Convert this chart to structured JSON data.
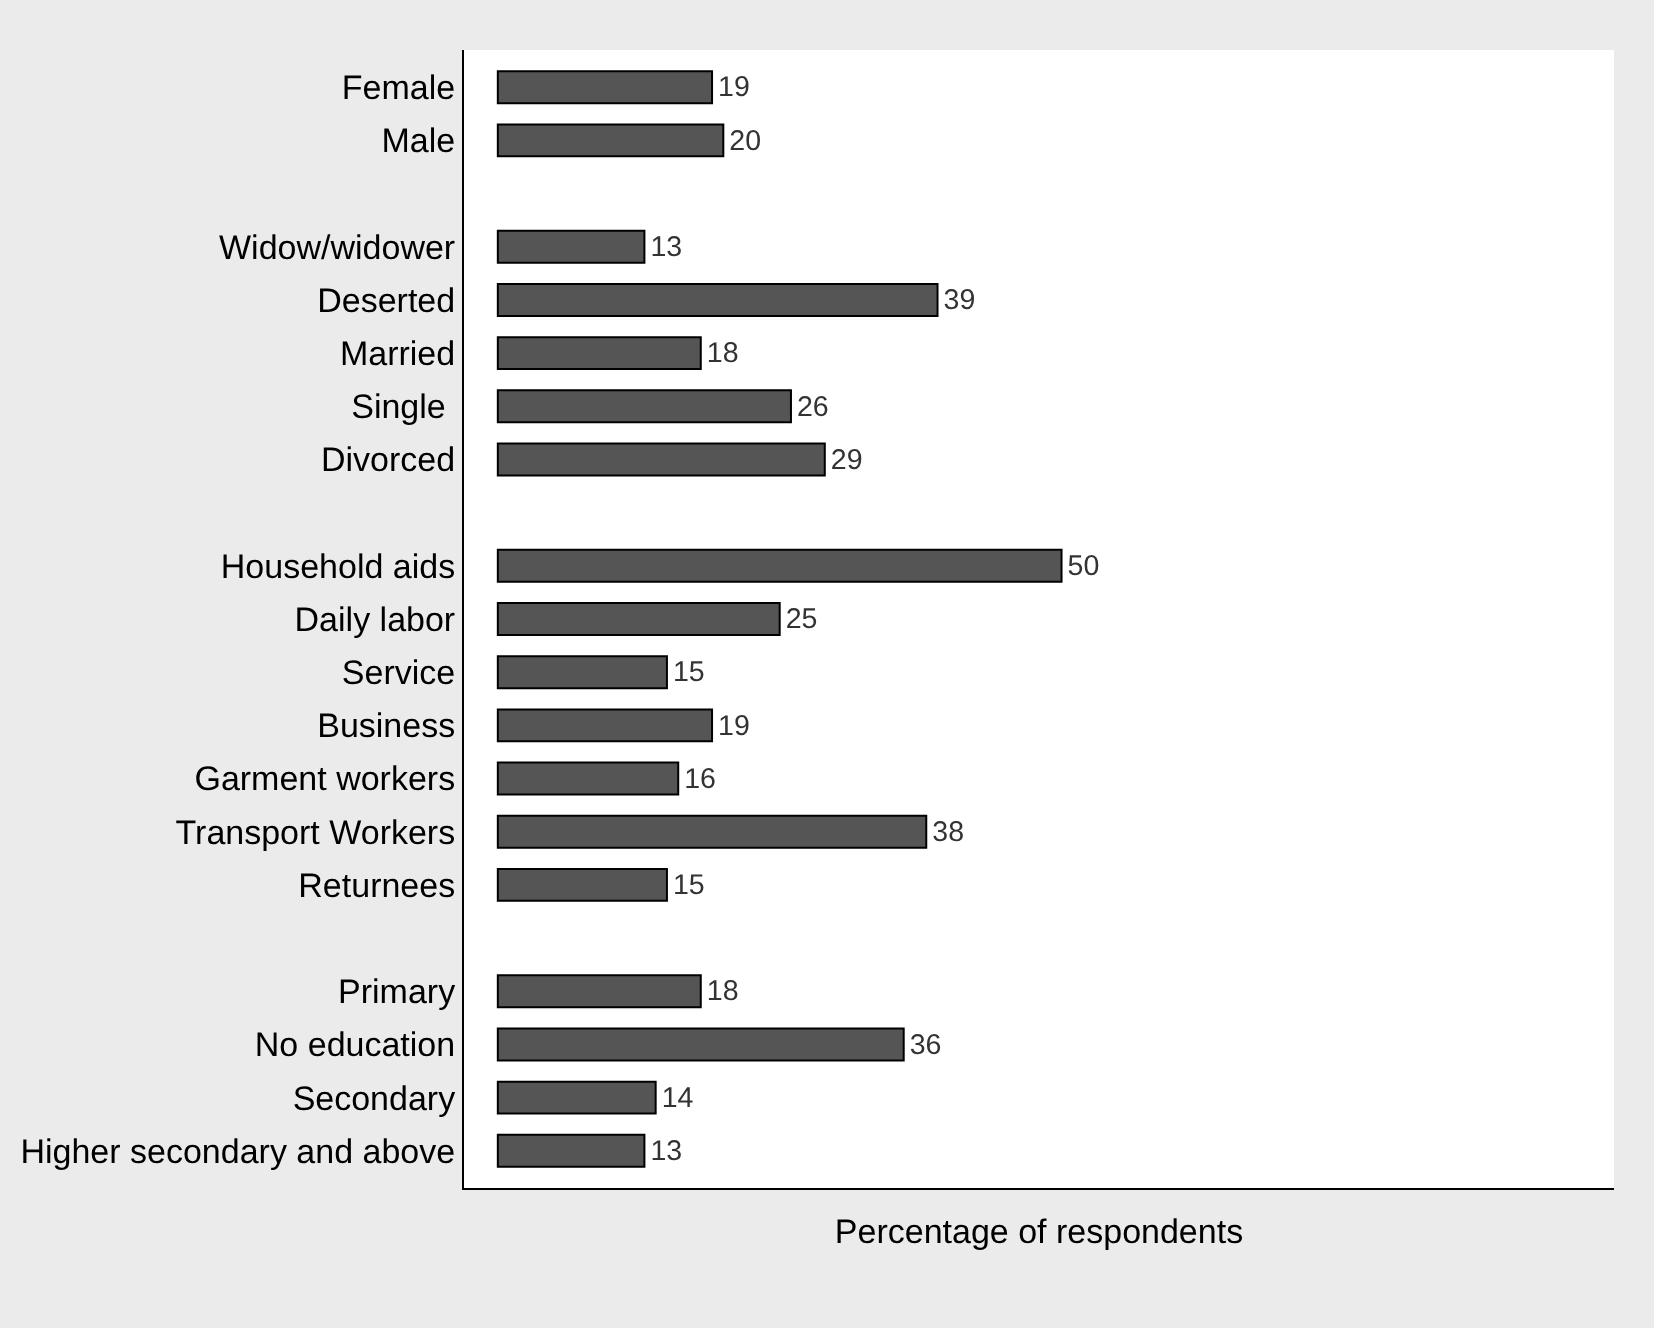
{
  "chart_data": {
    "type": "bar",
    "orientation": "horizontal",
    "xlabel": "Percentage of respondents",
    "categories": [
      "Female",
      "Male",
      null,
      "Widow/widower",
      "Deserted",
      "Married",
      "Single ",
      "Divorced",
      null,
      "Household aids",
      "Daily labor",
      "Service",
      "Business",
      "Garment workers",
      "Transport Workers",
      "Returnees",
      null,
      "Primary",
      "No education",
      "Secondary",
      "Higher secondary and above"
    ],
    "values": [
      19,
      20,
      null,
      13,
      39,
      18,
      26,
      29,
      null,
      50,
      25,
      15,
      19,
      16,
      38,
      15,
      null,
      18,
      36,
      14,
      13
    ],
    "color": "#555555",
    "data_labels": true,
    "tick_labels": "y"
  }
}
